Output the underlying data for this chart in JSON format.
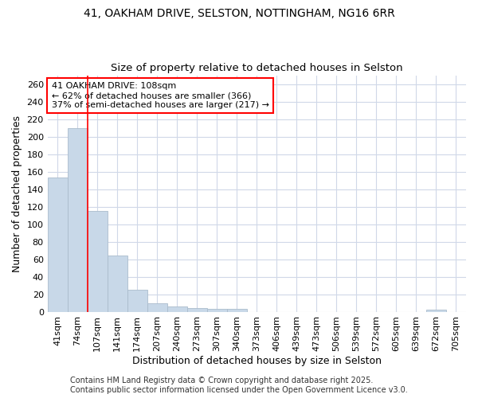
{
  "title_line1": "41, OAKHAM DRIVE, SELSTON, NOTTINGHAM, NG16 6RR",
  "title_line2": "Size of property relative to detached houses in Selston",
  "xlabel": "Distribution of detached houses by size in Selston",
  "ylabel": "Number of detached properties",
  "categories": [
    "41sqm",
    "74sqm",
    "107sqm",
    "141sqm",
    "174sqm",
    "207sqm",
    "240sqm",
    "273sqm",
    "307sqm",
    "340sqm",
    "373sqm",
    "406sqm",
    "439sqm",
    "473sqm",
    "506sqm",
    "539sqm",
    "572sqm",
    "605sqm",
    "639sqm",
    "672sqm",
    "705sqm"
  ],
  "values": [
    153,
    210,
    115,
    64,
    25,
    10,
    6,
    4,
    3,
    3,
    0,
    0,
    0,
    0,
    0,
    0,
    0,
    0,
    0,
    2,
    0
  ],
  "bar_color": "#c8d8e8",
  "bar_edge_color": "#aabccc",
  "red_line_after_index": 1,
  "annotation_text": "41 OAKHAM DRIVE: 108sqm\n← 62% of detached houses are smaller (366)\n37% of semi-detached houses are larger (217) →",
  "annotation_box_facecolor": "white",
  "annotation_box_edgecolor": "red",
  "ylim": [
    0,
    270
  ],
  "yticks": [
    0,
    20,
    40,
    60,
    80,
    100,
    120,
    140,
    160,
    180,
    200,
    220,
    240,
    260
  ],
  "footer_line1": "Contains HM Land Registry data © Crown copyright and database right 2025.",
  "footer_line2": "Contains public sector information licensed under the Open Government Licence v3.0.",
  "background_color": "#ffffff",
  "grid_color": "#d0d8e8",
  "title_fontsize": 10,
  "subtitle_fontsize": 9.5,
  "axis_label_fontsize": 9,
  "tick_fontsize": 8,
  "annotation_fontsize": 8,
  "footer_fontsize": 7
}
